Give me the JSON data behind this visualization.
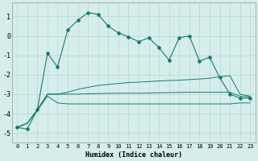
{
  "xlabel": "Humidex (Indice chaleur)",
  "x_values": [
    0,
    1,
    2,
    3,
    4,
    5,
    6,
    7,
    8,
    9,
    10,
    11,
    12,
    13,
    14,
    15,
    16,
    17,
    18,
    19,
    20,
    21,
    22,
    23
  ],
  "main_line": [
    -4.7,
    -4.8,
    -3.8,
    -0.9,
    -1.6,
    0.3,
    0.8,
    1.2,
    1.1,
    0.5,
    0.15,
    -0.05,
    -0.3,
    -0.1,
    -0.6,
    -1.25,
    -0.1,
    0.0,
    -1.3,
    -1.1,
    -2.15,
    -3.0,
    -3.2,
    -3.2
  ],
  "line2": [
    -4.7,
    -4.5,
    -3.8,
    -3.0,
    -3.0,
    -2.9,
    -2.75,
    -2.65,
    -2.55,
    -2.5,
    -2.45,
    -2.4,
    -2.38,
    -2.35,
    -2.32,
    -2.3,
    -2.28,
    -2.25,
    -2.22,
    -2.18,
    -2.1,
    -2.05,
    -3.0,
    -3.1
  ],
  "line3": [
    -4.7,
    -4.5,
    -3.8,
    -3.0,
    -3.0,
    -3.0,
    -3.0,
    -2.98,
    -2.97,
    -2.96,
    -2.95,
    -2.95,
    -2.95,
    -2.94,
    -2.93,
    -2.92,
    -2.91,
    -2.9,
    -2.9,
    -2.9,
    -2.9,
    -2.9,
    -3.1,
    -3.15
  ],
  "line4": [
    -4.7,
    -4.5,
    -3.85,
    -3.1,
    -3.45,
    -3.5,
    -3.5,
    -3.5,
    -3.5,
    -3.5,
    -3.5,
    -3.5,
    -3.5,
    -3.5,
    -3.5,
    -3.5,
    -3.5,
    -3.5,
    -3.5,
    -3.5,
    -3.5,
    -3.5,
    -3.45,
    -3.45
  ],
  "line_color": "#1a7a6e",
  "bg_color": "#d5eeeb",
  "grid_color": "#b8d8d4",
  "ylim": [
    -5.5,
    1.7
  ],
  "yticks": [
    -5,
    -4,
    -3,
    -2,
    -1,
    0,
    1
  ]
}
